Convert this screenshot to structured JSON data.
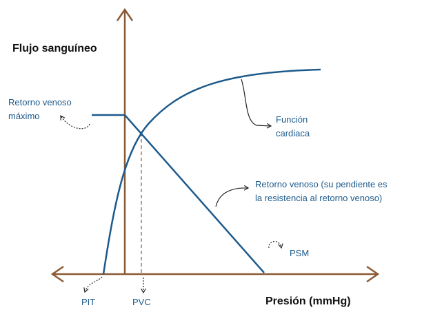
{
  "labels": {
    "y_axis": "Flujo sanguíneo",
    "x_axis": "Presión (mmHg)",
    "max_venous_return": [
      "Retorno venoso",
      "máximo"
    ],
    "cardiac_function": [
      "Función",
      "cardiaca"
    ],
    "venous_return": [
      "Retorno venoso (su pendiente es",
      "la resistencia al retorno venoso)"
    ],
    "psm": "PSM",
    "pit": "PIT",
    "pvc": "PVC"
  }
}
